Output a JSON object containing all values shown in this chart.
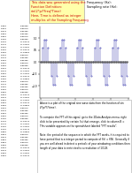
{
  "freq": 5,
  "fs": 50,
  "n_samples": 50,
  "plot_bg": "#ffffff",
  "stem_color": "#3333aa",
  "marker_color": "#3333aa",
  "fig_bg": "#ffffff",
  "ylim": [
    -1.5,
    1.5
  ],
  "yticks": [
    -1.0,
    -0.5,
    0.0,
    0.5,
    1.0
  ],
  "body_text": "Above is a plot of the original sine wave data from the function of sin\n(2*pi*5*time).\n\nTo compute the FFT of this signal, go to the 2Data Analysis menu, right\nclick to be presented by certain list that emerge, click to column B =\nThis variable appears on the spreadsheet labeled \"FFT results\".\n\nNote: the period of the sequence in which the FFT works, it is required to\nhave period that is a integer period to compute of f(t) = f(N). Generally if\nyou are well ahead in detect a periodic of your windowing conditions then\nlength of your data is restricted to a resolution of 1/128.",
  "hdr_text": "This data was generated using the\nFunction Definition:\nsin(2*pi*Freq*Time)\nHere, Time is defined as integer\nmultiples of the Sampling Frequency",
  "title_right": "Frequency (Hz):\nSampling rate (Hz):",
  "table_col1": [
    "0.000",
    "0.020",
    "0.040",
    "0.060",
    "0.080",
    "0.100",
    "0.120",
    "0.140",
    "0.160",
    "0.180",
    "0.200",
    "0.220",
    "0.240",
    "0.260",
    "0.280",
    "0.300",
    "0.320",
    "0.340",
    "0.360",
    "0.380",
    "0.400",
    "0.420",
    "0.440",
    "0.460",
    "0.480",
    "0.500",
    "0.520",
    "0.540",
    "0.560",
    "0.580",
    "0.600",
    "0.620",
    "0.640",
    "0.660",
    "0.680",
    "0.700",
    "0.720",
    "0.740",
    "0.760",
    "0.780",
    "0.800",
    "0.820",
    "0.840",
    "0.860",
    "0.880",
    "0.900",
    "0.920",
    "0.940",
    "0.960",
    "0.980"
  ]
}
